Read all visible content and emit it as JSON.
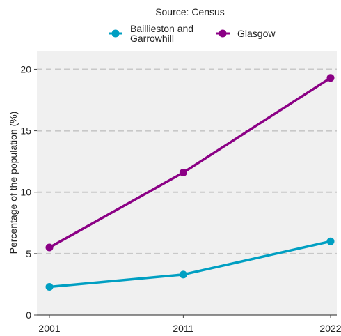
{
  "chart_data": {
    "type": "line",
    "subtitle": "Source: Census",
    "xlabel": "",
    "ylabel": "Percentage of the population (%)",
    "x": [
      "2001",
      "2011",
      "2022"
    ],
    "x_numeric": [
      2001,
      2011,
      2022
    ],
    "ylim": [
      0,
      21.5
    ],
    "yticks": [
      0,
      5,
      10,
      15,
      20
    ],
    "grid": "horizontal dashed",
    "legend_placement": "top",
    "series": [
      {
        "name": "Baillieston and Garrowhill",
        "name_lines": [
          "Baillieston and",
          "Garrowhill"
        ],
        "color": "#009fc2",
        "values": [
          2.3,
          3.3,
          6.0
        ]
      },
      {
        "name": "Glasgow",
        "name_lines": [
          "Glasgow"
        ],
        "color": "#8b0085",
        "values": [
          5.5,
          11.6,
          19.3
        ]
      }
    ]
  }
}
